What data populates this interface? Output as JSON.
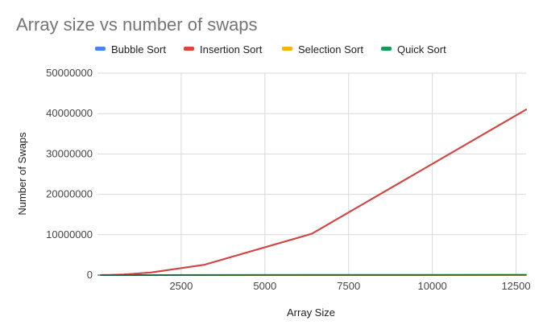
{
  "chart_data": {
    "type": "line",
    "title": "Array size vs number of swaps",
    "xlabel": "Array Size",
    "ylabel": "Number of Swaps",
    "xlim": [
      0,
      12800
    ],
    "ylim": [
      0,
      50000000
    ],
    "x_ticks": [
      2500,
      5000,
      7500,
      10000,
      12500
    ],
    "x_tick_labels": [
      "2500",
      "5000",
      "7500",
      "10000",
      "12500"
    ],
    "y_ticks": [
      0,
      10000000,
      20000000,
      30000000,
      40000000,
      50000000
    ],
    "y_tick_labels": [
      "0",
      "10000000",
      "20000000",
      "30000000",
      "40000000",
      "50000000"
    ],
    "grid": true,
    "legend_position": "top",
    "x": [
      100,
      200,
      400,
      800,
      1600,
      3200,
      6400,
      12800
    ],
    "series": [
      {
        "name": "Bubble Sort",
        "color": "#4285f4",
        "values": [
          2500,
          10000,
          40000,
          160000,
          640000,
          2560000,
          10240000,
          41000000
        ]
      },
      {
        "name": "Insertion Sort",
        "color": "#db4437",
        "values": [
          2500,
          10000,
          40000,
          160000,
          640000,
          2560000,
          10240000,
          41000000
        ]
      },
      {
        "name": "Selection Sort",
        "color": "#f4b400",
        "values": [
          99,
          199,
          399,
          799,
          1599,
          3199,
          6399,
          12799
        ]
      },
      {
        "name": "Quick Sort",
        "color": "#0f9d58",
        "values": [
          300,
          700,
          1600,
          3600,
          8000,
          17500,
          38000,
          82000
        ]
      }
    ]
  }
}
